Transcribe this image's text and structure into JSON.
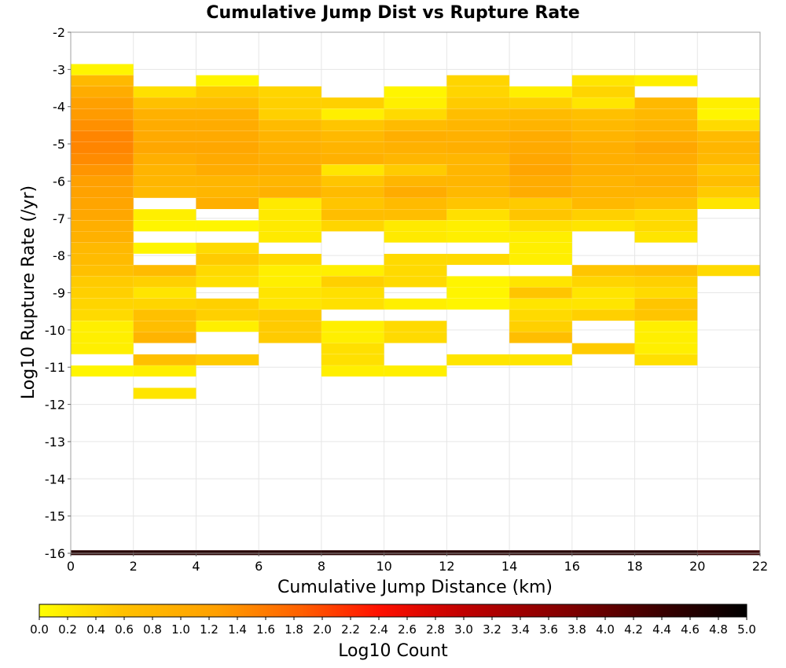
{
  "chart_data": {
    "type": "heatmap",
    "title": "Cumulative Jump Dist vs Rupture Rate",
    "xlabel": "Cumulative Jump Distance (km)",
    "ylabel": "Log10 Rupture Rate (/yr)",
    "xlim": [
      0,
      22
    ],
    "ylim": [
      -16,
      -2
    ],
    "x_ticks": [
      0,
      2,
      4,
      6,
      8,
      10,
      12,
      14,
      16,
      18,
      20,
      22
    ],
    "y_ticks": [
      -2,
      -3,
      -4,
      -5,
      -6,
      -7,
      -8,
      -9,
      -10,
      -11,
      -12,
      -13,
      -14,
      -15,
      -16
    ],
    "x_bin_width": 2,
    "y_bin_height": 0.29,
    "grid": true,
    "colorbar": {
      "label": "Log10 Count",
      "range": [
        0.0,
        5.0
      ],
      "ticks": [
        "0.0",
        "0.2",
        "0.4",
        "0.6",
        "0.8",
        "1.0",
        "1.2",
        "1.4",
        "1.6",
        "1.8",
        "2.0",
        "2.2",
        "2.4",
        "2.6",
        "2.8",
        "3.0",
        "3.2",
        "3.4",
        "3.6",
        "3.8",
        "4.0",
        "4.2",
        "4.4",
        "4.6",
        "4.8",
        "5.0"
      ],
      "colors": [
        "#ffff00",
        "#ffa000",
        "#ff0000",
        "#800000",
        "#000000"
      ]
    },
    "columns": [
      {
        "x": [
          0,
          2
        ],
        "cells": [
          [
            -3.0,
            0.1
          ],
          [
            -3.3,
            0.75
          ],
          [
            -3.6,
            1.0
          ],
          [
            -3.9,
            1.25
          ],
          [
            -4.2,
            1.3
          ],
          [
            -4.5,
            1.4
          ],
          [
            -4.8,
            1.5
          ],
          [
            -5.1,
            1.5
          ],
          [
            -5.4,
            1.45
          ],
          [
            -5.7,
            1.35
          ],
          [
            -6.0,
            1.25
          ],
          [
            -6.3,
            1.2
          ],
          [
            -6.6,
            1.15
          ],
          [
            -6.9,
            1.1
          ],
          [
            -7.2,
            0.95
          ],
          [
            -7.5,
            0.9
          ],
          [
            -7.8,
            0.75
          ],
          [
            -8.1,
            0.7
          ],
          [
            -8.4,
            0.6
          ],
          [
            -8.7,
            0.5
          ],
          [
            -9.0,
            0.45
          ],
          [
            -9.3,
            0.4
          ],
          [
            -9.6,
            0.35
          ],
          [
            -9.9,
            0.15
          ],
          [
            -10.2,
            0.15
          ],
          [
            -10.5,
            0.15
          ],
          [
            -11.1,
            0.1
          ]
        ]
      },
      {
        "x": [
          2,
          4
        ],
        "cells": [
          [
            -3.6,
            0.3
          ],
          [
            -3.9,
            0.6
          ],
          [
            -4.2,
            0.9
          ],
          [
            -4.5,
            1.0
          ],
          [
            -4.8,
            1.05
          ],
          [
            -5.1,
            1.1
          ],
          [
            -5.4,
            0.95
          ],
          [
            -5.7,
            0.85
          ],
          [
            -6.0,
            0.8
          ],
          [
            -6.3,
            0.75
          ],
          [
            -6.9,
            0.15
          ],
          [
            -7.2,
            0.1
          ],
          [
            -7.8,
            0.1
          ],
          [
            -8.4,
            0.7
          ],
          [
            -8.7,
            0.45
          ],
          [
            -9.0,
            0.25
          ],
          [
            -9.3,
            0.4
          ],
          [
            -9.6,
            0.6
          ],
          [
            -9.9,
            0.65
          ],
          [
            -10.2,
            0.85
          ],
          [
            -10.8,
            0.6
          ],
          [
            -11.1,
            0.15
          ],
          [
            -11.7,
            0.25
          ]
        ]
      },
      {
        "x": [
          4,
          6
        ],
        "cells": [
          [
            -3.3,
            0.1
          ],
          [
            -3.6,
            0.5
          ],
          [
            -3.9,
            0.65
          ],
          [
            -4.2,
            0.9
          ],
          [
            -4.5,
            1.0
          ],
          [
            -4.8,
            1.05
          ],
          [
            -5.1,
            1.1
          ],
          [
            -5.4,
            1.05
          ],
          [
            -5.7,
            1.0
          ],
          [
            -6.0,
            0.8
          ],
          [
            -6.3,
            0.8
          ],
          [
            -6.6,
            0.95
          ],
          [
            -7.2,
            0.1
          ],
          [
            -7.8,
            0.35
          ],
          [
            -8.1,
            0.5
          ],
          [
            -8.4,
            0.35
          ],
          [
            -8.7,
            0.3
          ],
          [
            -9.3,
            0.45
          ],
          [
            -9.6,
            0.45
          ],
          [
            -9.9,
            0.15
          ],
          [
            -10.8,
            0.5
          ]
        ]
      },
      {
        "x": [
          6,
          8
        ],
        "cells": [
          [
            -3.6,
            0.4
          ],
          [
            -3.9,
            0.45
          ],
          [
            -4.2,
            0.45
          ],
          [
            -4.5,
            0.7
          ],
          [
            -4.8,
            0.85
          ],
          [
            -5.1,
            0.9
          ],
          [
            -5.4,
            0.95
          ],
          [
            -5.7,
            0.95
          ],
          [
            -6.0,
            0.8
          ],
          [
            -6.3,
            0.9
          ],
          [
            -6.6,
            0.2
          ],
          [
            -6.9,
            0.2
          ],
          [
            -7.2,
            0.2
          ],
          [
            -7.5,
            0.2
          ],
          [
            -8.1,
            0.35
          ],
          [
            -8.4,
            0.15
          ],
          [
            -8.7,
            0.15
          ],
          [
            -9.0,
            0.25
          ],
          [
            -9.3,
            0.25
          ],
          [
            -9.6,
            0.5
          ],
          [
            -9.9,
            0.5
          ],
          [
            -10.2,
            0.5
          ]
        ]
      },
      {
        "x": [
          8,
          10
        ],
        "cells": [
          [
            -3.9,
            0.45
          ],
          [
            -4.2,
            0.15
          ],
          [
            -4.5,
            0.55
          ],
          [
            -4.8,
            0.75
          ],
          [
            -5.1,
            0.85
          ],
          [
            -5.4,
            0.9
          ],
          [
            -5.7,
            0.25
          ],
          [
            -6.0,
            0.55
          ],
          [
            -6.3,
            0.7
          ],
          [
            -6.6,
            0.55
          ],
          [
            -6.9,
            0.65
          ],
          [
            -7.2,
            0.4
          ],
          [
            -8.4,
            0.15
          ],
          [
            -8.7,
            0.45
          ],
          [
            -9.0,
            0.3
          ],
          [
            -9.3,
            0.3
          ],
          [
            -9.9,
            0.15
          ],
          [
            -10.2,
            0.15
          ],
          [
            -10.5,
            0.3
          ],
          [
            -10.8,
            0.3
          ],
          [
            -11.1,
            0.15
          ]
        ]
      },
      {
        "x": [
          10,
          12
        ],
        "cells": [
          [
            -3.6,
            0.1
          ],
          [
            -3.9,
            0.15
          ],
          [
            -4.2,
            0.35
          ],
          [
            -4.5,
            0.7
          ],
          [
            -4.8,
            0.95
          ],
          [
            -5.1,
            0.9
          ],
          [
            -5.4,
            0.8
          ],
          [
            -5.7,
            0.5
          ],
          [
            -6.0,
            0.8
          ],
          [
            -6.3,
            1.0
          ],
          [
            -6.6,
            0.7
          ],
          [
            -6.9,
            0.65
          ],
          [
            -7.2,
            0.2
          ],
          [
            -7.5,
            0.2
          ],
          [
            -8.1,
            0.35
          ],
          [
            -8.4,
            0.35
          ],
          [
            -8.7,
            0.35
          ],
          [
            -9.3,
            0.15
          ],
          [
            -9.9,
            0.35
          ],
          [
            -10.2,
            0.35
          ],
          [
            -11.1,
            0.15
          ]
        ]
      },
      {
        "x": [
          12,
          14
        ],
        "cells": [
          [
            -3.3,
            0.4
          ],
          [
            -3.6,
            0.4
          ],
          [
            -3.9,
            0.5
          ],
          [
            -4.2,
            0.65
          ],
          [
            -4.5,
            0.8
          ],
          [
            -4.8,
            0.9
          ],
          [
            -5.1,
            0.95
          ],
          [
            -5.4,
            0.8
          ],
          [
            -5.7,
            0.8
          ],
          [
            -6.0,
            0.8
          ],
          [
            -6.3,
            0.75
          ],
          [
            -6.6,
            0.55
          ],
          [
            -6.9,
            0.3
          ],
          [
            -7.2,
            0.15
          ],
          [
            -7.5,
            0.15
          ],
          [
            -8.1,
            0.35
          ],
          [
            -8.7,
            0.1
          ],
          [
            -9.0,
            0.1
          ],
          [
            -9.3,
            0.1
          ],
          [
            -10.8,
            0.25
          ]
        ]
      },
      {
        "x": [
          14,
          16
        ],
        "cells": [
          [
            -3.6,
            0.15
          ],
          [
            -3.9,
            0.45
          ],
          [
            -4.2,
            0.7
          ],
          [
            -4.5,
            0.85
          ],
          [
            -4.8,
            1.0
          ],
          [
            -5.1,
            1.05
          ],
          [
            -5.4,
            1.1
          ],
          [
            -5.7,
            1.15
          ],
          [
            -6.0,
            1.0
          ],
          [
            -6.3,
            1.0
          ],
          [
            -6.6,
            0.5
          ],
          [
            -6.9,
            0.55
          ],
          [
            -7.2,
            0.3
          ],
          [
            -7.5,
            0.15
          ],
          [
            -7.8,
            0.15
          ],
          [
            -8.1,
            0.15
          ],
          [
            -8.7,
            0.25
          ],
          [
            -9.0,
            0.55
          ],
          [
            -9.3,
            0.25
          ],
          [
            -9.6,
            0.35
          ],
          [
            -9.9,
            0.45
          ],
          [
            -10.2,
            0.65
          ],
          [
            -10.8,
            0.25
          ]
        ]
      },
      {
        "x": [
          16,
          18
        ],
        "cells": [
          [
            -3.3,
            0.25
          ],
          [
            -3.6,
            0.4
          ],
          [
            -3.9,
            0.25
          ],
          [
            -4.2,
            0.6
          ],
          [
            -4.5,
            0.75
          ],
          [
            -4.8,
            0.85
          ],
          [
            -5.1,
            0.95
          ],
          [
            -5.4,
            0.95
          ],
          [
            -5.7,
            0.95
          ],
          [
            -6.0,
            0.85
          ],
          [
            -6.3,
            0.85
          ],
          [
            -6.6,
            0.75
          ],
          [
            -6.9,
            0.45
          ],
          [
            -7.2,
            0.25
          ],
          [
            -8.4,
            0.55
          ],
          [
            -8.7,
            0.4
          ],
          [
            -9.0,
            0.25
          ],
          [
            -9.3,
            0.25
          ],
          [
            -9.6,
            0.45
          ],
          [
            -10.5,
            0.5
          ]
        ]
      },
      {
        "x": [
          18,
          20
        ],
        "cells": [
          [
            -3.3,
            0.15
          ],
          [
            -3.9,
            0.75
          ],
          [
            -4.2,
            0.75
          ],
          [
            -4.5,
            0.85
          ],
          [
            -4.8,
            0.95
          ],
          [
            -5.1,
            1.1
          ],
          [
            -5.4,
            1.0
          ],
          [
            -5.7,
            0.9
          ],
          [
            -6.0,
            0.95
          ],
          [
            -6.3,
            0.85
          ],
          [
            -6.6,
            0.6
          ],
          [
            -6.9,
            0.35
          ],
          [
            -7.2,
            0.35
          ],
          [
            -7.5,
            0.25
          ],
          [
            -8.4,
            0.6
          ],
          [
            -8.7,
            0.45
          ],
          [
            -9.0,
            0.35
          ],
          [
            -9.3,
            0.55
          ],
          [
            -9.6,
            0.55
          ],
          [
            -9.9,
            0.15
          ],
          [
            -10.2,
            0.15
          ],
          [
            -10.5,
            0.15
          ],
          [
            -10.8,
            0.3
          ]
        ]
      },
      {
        "x": [
          20,
          22
        ],
        "cells": [
          [
            -3.9,
            0.15
          ],
          [
            -4.2,
            0.1
          ],
          [
            -4.5,
            0.35
          ],
          [
            -4.8,
            0.7
          ],
          [
            -5.1,
            0.8
          ],
          [
            -5.4,
            0.75
          ],
          [
            -5.7,
            0.55
          ],
          [
            -6.0,
            0.65
          ],
          [
            -6.3,
            0.5
          ],
          [
            -6.6,
            0.25
          ],
          [
            -8.4,
            0.35
          ]
        ]
      }
    ],
    "bottom_row": {
      "y": -16.0,
      "values": [
        4.6,
        4.6,
        4.6,
        4.6,
        4.6,
        4.6,
        4.6,
        4.6,
        4.6,
        4.6,
        4.4
      ]
    }
  }
}
